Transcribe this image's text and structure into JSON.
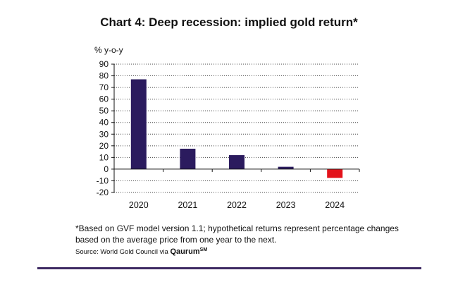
{
  "chart_data": {
    "type": "bar",
    "title": "Chart 4: Deep recession: implied gold return*",
    "ylabel": "% y-o-y",
    "xlabel": "",
    "categories": [
      "2020",
      "2021",
      "2022",
      "2023",
      "2024"
    ],
    "values": [
      77,
      17.5,
      12,
      2,
      -7.5
    ],
    "ylim": [
      -20,
      90
    ],
    "yticks": [
      -20,
      -10,
      0,
      10,
      20,
      30,
      40,
      50,
      60,
      70,
      80,
      90
    ],
    "grid": "horizontal-dotted",
    "colors": {
      "positive": "#2b1b5e",
      "negative": "#e3131b"
    }
  },
  "footnote": "*Based on GVF model version 1.1; hypothetical returns represent percentage changes based on the average price from one year to the next.",
  "source": {
    "prefix": "Source: World Gold Council via",
    "brand": "Qaurum",
    "mark": "SM"
  },
  "accent_rule_color": "#3e2a63"
}
